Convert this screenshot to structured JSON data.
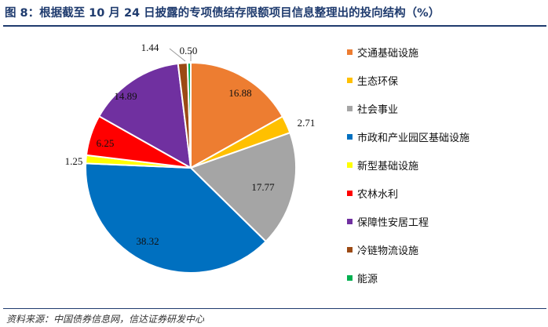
{
  "title": "图 8：根据截至 10 月 24 日披露的专项债结存限额项目信息整理出的投向结构（%）",
  "source": "资料来源：中国债券信息网，信达证券研发中心",
  "chart_data": {
    "type": "pie",
    "title": "图 8：根据截至 10 月 24 日披露的专项债结存限额项目信息整理出的投向结构（%）",
    "legend_position": "right",
    "start_angle_deg": 0,
    "direction": "clockwise",
    "slices": [
      {
        "label": "交通基础设施",
        "value": 16.88,
        "color": "#ed7d31",
        "label_text": "16.88"
      },
      {
        "label": "生态环保",
        "value": 2.71,
        "color": "#ffc000",
        "label_text": "2.71"
      },
      {
        "label": "社会事业",
        "value": 17.77,
        "color": "#a5a5a5",
        "label_text": "17.77"
      },
      {
        "label": "市政和产业园区基础设施",
        "value": 38.32,
        "color": "#0070c0",
        "label_text": "38.32"
      },
      {
        "label": "新型基础设施",
        "value": 1.25,
        "color": "#ffff00",
        "label_text": "1.25"
      },
      {
        "label": "农林水利",
        "value": 6.25,
        "color": "#ff0000",
        "label_text": "6.25"
      },
      {
        "label": "保障性安居工程",
        "value": 14.89,
        "color": "#7030a0",
        "label_text": "14.89"
      },
      {
        "label": "冷链物流设施",
        "value": 1.44,
        "color": "#9c4a14",
        "label_text": "1.44"
      },
      {
        "label": "能源",
        "value": 0.5,
        "color": "#00b050",
        "label_text": "0.50"
      }
    ]
  }
}
